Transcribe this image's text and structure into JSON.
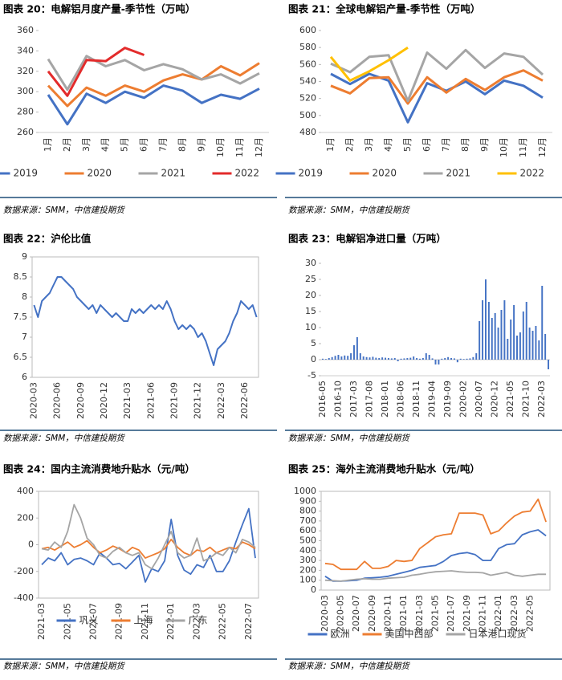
{
  "chart_data": [
    {
      "type": "line",
      "title": "图表 20：电解铝月度产量-季节性（万吨）",
      "source": "数据来源：SMM，中信建投期货",
      "categories": [
        "1月",
        "2月",
        "3月",
        "4月",
        "5月",
        "6月",
        "7月",
        "8月",
        "9月",
        "10月",
        "11月",
        "12月"
      ],
      "ylim": [
        260,
        360
      ],
      "yticks": [
        260,
        280,
        300,
        320,
        340,
        360
      ],
      "series": [
        {
          "name": "2019",
          "color": "#4472c4",
          "values": [
            297,
            268,
            298,
            289,
            300,
            294,
            306,
            301,
            289,
            297,
            293,
            303
          ]
        },
        {
          "name": "2020",
          "color": "#ed7d31",
          "values": [
            306,
            286,
            304,
            296,
            306,
            300,
            311,
            317,
            312,
            325,
            316,
            328
          ]
        },
        {
          "name": "2021",
          "color": "#a5a5a5",
          "values": [
            332,
            302,
            335,
            325,
            331,
            321,
            327,
            322,
            312,
            317,
            308,
            318
          ]
        },
        {
          "name": "2022",
          "color": "#e32b2b",
          "values": [
            320,
            296,
            331,
            330,
            343,
            336,
            null,
            null,
            null,
            null,
            null,
            null
          ]
        }
      ]
    },
    {
      "type": "line",
      "title": "图表 21：全球电解铝产量-季节性（万吨）",
      "source": "数据来源：SMM，中信建投期货",
      "categories": [
        "1月",
        "2月",
        "3月",
        "4月",
        "5月",
        "6月",
        "7月",
        "8月",
        "9月",
        "10月",
        "11月",
        "12月"
      ],
      "ylim": [
        480,
        600
      ],
      "yticks": [
        480,
        500,
        520,
        540,
        560,
        580,
        600
      ],
      "series": [
        {
          "name": "2019",
          "color": "#4472c4",
          "values": [
            549,
            537,
            549,
            541,
            492,
            538,
            529,
            540,
            525,
            541,
            535,
            521
          ]
        },
        {
          "name": "2020",
          "color": "#ed7d31",
          "values": [
            535,
            526,
            544,
            545,
            514,
            545,
            527,
            543,
            530,
            545,
            553,
            541
          ]
        },
        {
          "name": "2021",
          "color": "#a5a5a5",
          "values": [
            561,
            551,
            569,
            571,
            517,
            574,
            555,
            577,
            556,
            573,
            569,
            548
          ]
        },
        {
          "name": "2022",
          "color": "#ffc000",
          "values": [
            569,
            541,
            552,
            565,
            580,
            null,
            null,
            null,
            null,
            null,
            null,
            null
          ]
        }
      ]
    },
    {
      "type": "line",
      "title": "图表 22：沪伦比值",
      "source": "数据来源：SMM，中信建投期货",
      "categories": [
        "2020-03",
        null,
        null,
        null,
        null,
        null,
        "2020-06",
        null,
        null,
        null,
        null,
        null,
        "2020-09",
        null,
        null,
        null,
        null,
        null,
        "2020-12",
        null,
        null,
        null,
        null,
        null,
        "2021-03",
        null,
        null,
        null,
        null,
        null,
        "2021-06",
        null,
        null,
        null,
        null,
        null,
        "2021-09",
        null,
        null,
        null,
        null,
        null,
        "2021-12",
        null,
        null,
        null,
        null,
        null,
        "2022-03",
        null,
        null,
        null,
        null,
        null,
        "2022-06",
        null,
        null,
        null
      ],
      "ylim": [
        6,
        9
      ],
      "yticks": [
        6,
        6.5,
        7,
        7.5,
        8,
        8.5,
        9
      ],
      "series": [
        {
          "color": "#4472c4",
          "values": [
            7.8,
            7.5,
            7.9,
            8.0,
            8.1,
            8.3,
            8.5,
            8.5,
            8.4,
            8.3,
            8.2,
            8.0,
            7.9,
            7.8,
            7.7,
            7.8,
            7.6,
            7.8,
            7.7,
            7.6,
            7.5,
            7.6,
            7.5,
            7.4,
            7.4,
            7.7,
            7.6,
            7.7,
            7.6,
            7.7,
            7.8,
            7.7,
            7.8,
            7.7,
            7.9,
            7.7,
            7.4,
            7.2,
            7.3,
            7.2,
            7.3,
            7.2,
            7.0,
            7.1,
            6.9,
            6.6,
            6.3,
            6.7,
            6.8,
            6.9,
            7.1,
            7.4,
            7.6,
            7.9,
            7.8,
            7.7,
            7.8,
            7.5
          ]
        }
      ]
    },
    {
      "type": "bar",
      "title": "图表 23：电解铝净进口量（万吨）",
      "source": "数据来源：SMM，中信建投期货",
      "categories": [
        "2016-05",
        null,
        null,
        null,
        null,
        "2016-10",
        null,
        null,
        null,
        null,
        "2017-03",
        null,
        null,
        null,
        null,
        "2017-08",
        null,
        null,
        null,
        null,
        "2018-01",
        null,
        null,
        null,
        null,
        "2018-06",
        null,
        null,
        null,
        null,
        "2018-11",
        null,
        null,
        null,
        null,
        "2019-04",
        null,
        null,
        null,
        null,
        "2019-09",
        null,
        null,
        null,
        null,
        "2020-02",
        null,
        null,
        null,
        null,
        "2020-07",
        null,
        null,
        null,
        null,
        "2020-12",
        null,
        null,
        null,
        null,
        "2021-05",
        null,
        null,
        null,
        null,
        "2021-10",
        null,
        null,
        null,
        null,
        "2022-03",
        null,
        null
      ],
      "ylim": [
        -5,
        30
      ],
      "yticks": [
        -5,
        0,
        5,
        10,
        15,
        20,
        25,
        30
      ],
      "color": "#4472c4",
      "values": [
        0.3,
        0.2,
        0.5,
        0.8,
        1.2,
        1.5,
        1.0,
        1.3,
        1.2,
        2.0,
        4.5,
        7.0,
        2.0,
        1.0,
        0.8,
        0.7,
        0.9,
        0.6,
        0.5,
        0.7,
        0.6,
        0.5,
        0.4,
        0.5,
        -0.5,
        0.3,
        0.4,
        0.5,
        0.6,
        1.0,
        0.5,
        0.3,
        0.5,
        2.0,
        1.5,
        0.4,
        -1.5,
        -1.5,
        0.3,
        0.5,
        0.8,
        0.5,
        0.4,
        -0.8,
        0.3,
        0.2,
        0.3,
        0.4,
        0.8,
        2.0,
        12.0,
        18.5,
        25.0,
        18.0,
        13.0,
        14.5,
        10.0,
        15.5,
        18.5,
        6.5,
        12.5,
        17.0,
        7.5,
        8.5,
        15.0,
        18.0,
        10.0,
        9.0,
        10.5,
        6.0,
        23.0,
        8.0,
        -3.0
      ]
    },
    {
      "type": "line",
      "title": "图表 24：国内主流消费地升贴水（元/吨）",
      "source": "数据来源：SMM，中信建投期货",
      "categories": [
        "2021-03",
        null,
        null,
        null,
        "2021-05",
        null,
        null,
        null,
        "2021-07",
        null,
        null,
        null,
        "2021-09",
        null,
        null,
        null,
        "2021-11",
        null,
        null,
        null,
        "2022-01",
        null,
        null,
        null,
        "2022-03",
        null,
        null,
        null,
        "2022-05",
        null,
        null,
        null,
        "2022-07",
        null
      ],
      "ylim": [
        -400,
        400
      ],
      "yticks": [
        -400,
        -200,
        0,
        200,
        400
      ],
      "series": [
        {
          "name": "巩义",
          "color": "#4472c4",
          "values": [
            -150,
            -100,
            -120,
            -60,
            -150,
            -110,
            -100,
            -120,
            -150,
            -60,
            -100,
            -150,
            -140,
            -180,
            -130,
            -80,
            -280,
            -180,
            -200,
            -120,
            190,
            -80,
            -190,
            -220,
            -150,
            -170,
            -80,
            -200,
            -200,
            -120,
            20,
            150,
            270,
            -100
          ]
        },
        {
          "name": "上海",
          "color": "#ed7d31",
          "values": [
            -30,
            -20,
            -40,
            -10,
            20,
            -20,
            0,
            30,
            -20,
            -60,
            -40,
            -10,
            -30,
            -60,
            -20,
            -40,
            -100,
            -80,
            -60,
            -30,
            40,
            -20,
            -60,
            -80,
            -40,
            -50,
            -20,
            -60,
            -40,
            -20,
            -30,
            20,
            0,
            -30
          ]
        },
        {
          "name": "广东",
          "color": "#a5a5a5",
          "values": [
            -30,
            -40,
            20,
            -20,
            100,
            300,
            200,
            50,
            0,
            -80,
            -100,
            -50,
            -20,
            -60,
            -80,
            -60,
            -150,
            -180,
            -100,
            0,
            100,
            -60,
            -100,
            -80,
            50,
            -120,
            -100,
            -60,
            -80,
            -20,
            -60,
            40,
            20,
            -20
          ]
        }
      ]
    },
    {
      "type": "line",
      "title": "图表 25：海外主流消费地升贴水（元/吨）",
      "source": "数据来源：SMM，中信建投期货",
      "categories": [
        "2020-03",
        null,
        "2020-05",
        null,
        "2020-07",
        null,
        "2020-09",
        null,
        "2020-11",
        null,
        "2021-01",
        null,
        "2021-03",
        null,
        "2021-05",
        null,
        "2021-07",
        null,
        "2021-09",
        null,
        "2021-11",
        null,
        "2022-01",
        null,
        "2022-03",
        null,
        "2022-05",
        null,
        null
      ],
      "ylim": [
        0,
        1000
      ],
      "yticks": [
        0,
        100,
        200,
        300,
        400,
        500,
        600,
        700,
        800,
        900,
        1000
      ],
      "series": [
        {
          "name": "欧洲",
          "color": "#4472c4",
          "values": [
            140,
            90,
            90,
            95,
            100,
            120,
            125,
            130,
            140,
            160,
            180,
            200,
            230,
            240,
            250,
            290,
            350,
            370,
            380,
            360,
            300,
            300,
            420,
            460,
            470,
            560,
            590,
            610,
            550
          ]
        },
        {
          "name": "美国中西部",
          "color": "#ed7d31",
          "values": [
            270,
            260,
            210,
            210,
            210,
            290,
            220,
            220,
            240,
            300,
            290,
            300,
            420,
            480,
            540,
            560,
            570,
            780,
            780,
            780,
            760,
            570,
            600,
            680,
            750,
            790,
            800,
            920,
            690
          ]
        },
        {
          "name": "日本港口现货",
          "color": "#a5a5a5",
          "values": [
            100,
            95,
            90,
            100,
            110,
            115,
            110,
            110,
            120,
            125,
            130,
            150,
            160,
            175,
            185,
            190,
            195,
            185,
            180,
            180,
            175,
            150,
            165,
            180,
            150,
            140,
            150,
            160,
            160
          ]
        }
      ]
    }
  ]
}
